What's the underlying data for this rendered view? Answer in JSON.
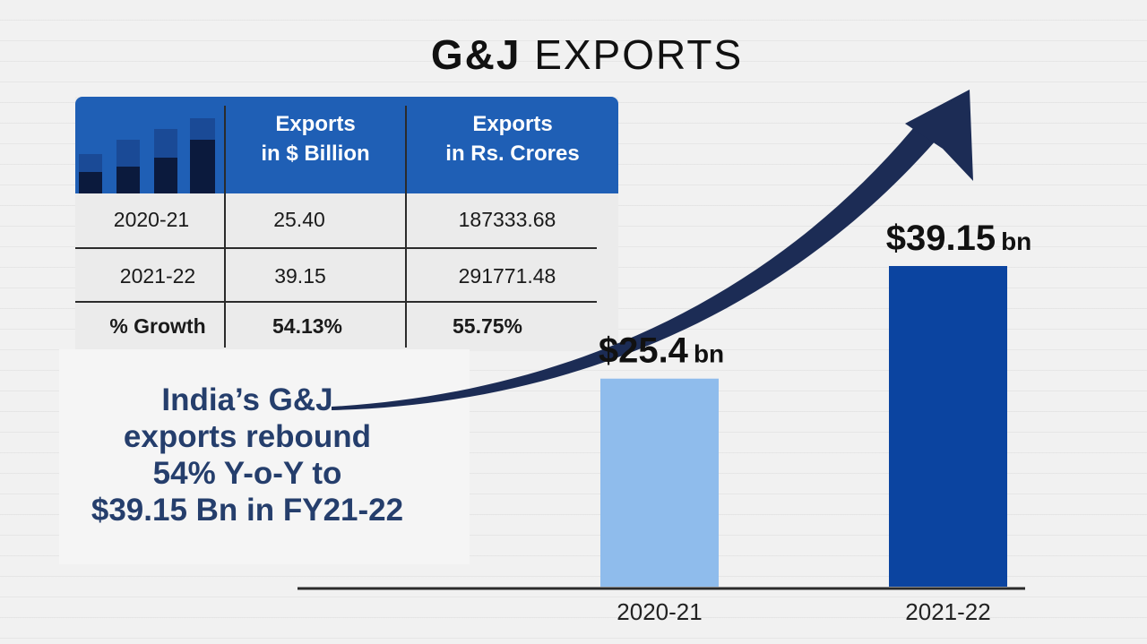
{
  "title": {
    "bold": "G&J",
    "light": "EXPORTS"
  },
  "table": {
    "headers": [
      {
        "line1": "Exports",
        "line2": "in $ Billion"
      },
      {
        "line1": "Exports",
        "line2": "in Rs. Crores"
      }
    ],
    "rows": [
      {
        "label": "2020-21",
        "usd": "25.40",
        "inr": "187333.68"
      },
      {
        "label": "2021-22",
        "usd": "39.15",
        "inr": "291771.48"
      },
      {
        "label": "% Growth",
        "usd": "54.13%",
        "inr": "55.75%"
      }
    ]
  },
  "caption": {
    "lines": [
      "India’s G&J",
      "exports rebound",
      "54% Y-o-Y to",
      "$39.15 Bn in FY21-22"
    ]
  },
  "chart_data": {
    "type": "bar",
    "categories": [
      "2020-21",
      "2021-22"
    ],
    "values": [
      25.4,
      39.15
    ],
    "data_labels": [
      {
        "value": "$25.4",
        "unit": "bn"
      },
      {
        "value": "$39.15",
        "unit": "bn"
      }
    ],
    "colors": [
      "#8fbcec",
      "#0b44a0"
    ],
    "ylim": [
      0,
      39.15
    ],
    "grid": false
  },
  "colors": {
    "table_header": "#1f5fb5",
    "arrow": "#1c2c55",
    "caption_text": "#253e6c"
  }
}
